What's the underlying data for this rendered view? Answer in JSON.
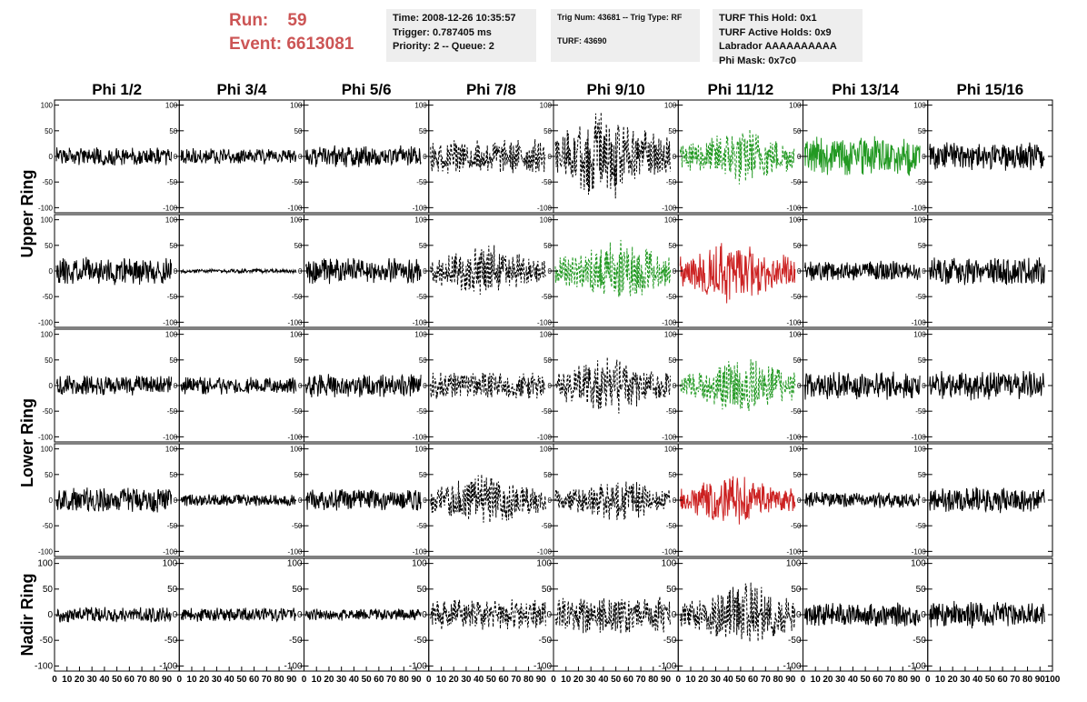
{
  "header": {
    "run_label": "Run:",
    "run_value": "59",
    "event_label": "Event:",
    "event_value": "6613081",
    "run_color": "#cc5555",
    "time": "Time: 2008-12-26 10:35:57",
    "trigger": "Trigger: 0.787405 ms",
    "priority": "Priority: 2 -- Queue: 2",
    "trig_num": "Trig Num: 43681 -- Trig Type: RF",
    "turf": "TURF: 43690",
    "turf_this_hold": "TURF This Hold: 0x1",
    "turf_active_holds": "TURF Active Holds: 0x9",
    "labrador": "Labrador AAAAAAAAAA",
    "phi_mask": "Phi Mask: 0x7c0"
  },
  "chart_data": {
    "type": "line",
    "columns": [
      "Phi 1/2",
      "Phi 3/4",
      "Phi 5/6",
      "Phi 7/8",
      "Phi 9/10",
      "Phi 11/12",
      "Phi 13/14",
      "Phi 15/16"
    ],
    "row_groups": [
      {
        "label": "Upper Ring",
        "rows": [
          0,
          1
        ]
      },
      {
        "label": "Lower Ring",
        "rows": [
          2,
          3
        ]
      },
      {
        "label": "Nadir Ring",
        "rows": [
          4
        ]
      }
    ],
    "xlim": [
      0,
      100
    ],
    "ylim": [
      -110,
      110
    ],
    "x_ticks": [
      "0",
      "10",
      "20",
      "30",
      "40",
      "50",
      "60",
      "70",
      "80",
      "90",
      "100"
    ],
    "y_ticks_upper": [
      "100",
      "50",
      "0",
      "-50",
      "-100"
    ],
    "y_ticks_nadir": [
      "100",
      "50",
      "0",
      "-50",
      "-100"
    ],
    "colors": {
      "normal": "#000000",
      "green": "#229922",
      "red": "#cc2222"
    },
    "panels": [
      [
        {
          "style": "solid",
          "color": "normal",
          "amp": 18,
          "seed": 1
        },
        {
          "style": "solid",
          "color": "normal",
          "amp": 16,
          "seed": 2
        },
        {
          "style": "solid",
          "color": "normal",
          "amp": 22,
          "seed": 3
        },
        {
          "style": "dashed",
          "color": "normal",
          "amp": 35,
          "seed": 4
        },
        {
          "style": "dashed",
          "color": "normal",
          "amp": 95,
          "seed": 5
        },
        {
          "style": "dashed",
          "color": "green",
          "amp": 60,
          "seed": 6
        },
        {
          "style": "solid",
          "color": "green",
          "amp": 40,
          "seed": 7
        },
        {
          "style": "solid",
          "color": "normal",
          "amp": 28,
          "seed": 8
        }
      ],
      [
        {
          "style": "solid",
          "color": "normal",
          "amp": 28,
          "seed": 11
        },
        {
          "style": "solid",
          "color": "normal",
          "amp": 4,
          "seed": 12
        },
        {
          "style": "solid",
          "color": "normal",
          "amp": 26,
          "seed": 13
        },
        {
          "style": "dashed",
          "color": "normal",
          "amp": 55,
          "seed": 14
        },
        {
          "style": "dashed",
          "color": "green",
          "amp": 65,
          "seed": 15
        },
        {
          "style": "solid",
          "color": "red",
          "amp": 70,
          "seed": 16
        },
        {
          "style": "solid",
          "color": "normal",
          "amp": 20,
          "seed": 17
        },
        {
          "style": "solid",
          "color": "normal",
          "amp": 28,
          "seed": 18
        }
      ],
      [
        {
          "style": "solid",
          "color": "normal",
          "amp": 20,
          "seed": 21
        },
        {
          "style": "solid",
          "color": "normal",
          "amp": 18,
          "seed": 22
        },
        {
          "style": "solid",
          "color": "normal",
          "amp": 24,
          "seed": 23
        },
        {
          "style": "dashed",
          "color": "normal",
          "amp": 28,
          "seed": 24
        },
        {
          "style": "dashed",
          "color": "normal",
          "amp": 60,
          "seed": 25
        },
        {
          "style": "dashed",
          "color": "green",
          "amp": 60,
          "seed": 26
        },
        {
          "style": "solid",
          "color": "normal",
          "amp": 28,
          "seed": 27
        },
        {
          "style": "solid",
          "color": "normal",
          "amp": 30,
          "seed": 28
        }
      ],
      [
        {
          "style": "solid",
          "color": "normal",
          "amp": 26,
          "seed": 31
        },
        {
          "style": "solid",
          "color": "normal",
          "amp": 12,
          "seed": 32
        },
        {
          "style": "solid",
          "color": "normal",
          "amp": 22,
          "seed": 33
        },
        {
          "style": "dashed",
          "color": "normal",
          "amp": 55,
          "seed": 34
        },
        {
          "style": "dashed",
          "color": "normal",
          "amp": 45,
          "seed": 35
        },
        {
          "style": "solid",
          "color": "red",
          "amp": 50,
          "seed": 36
        },
        {
          "style": "solid",
          "color": "normal",
          "amp": 16,
          "seed": 37
        },
        {
          "style": "solid",
          "color": "normal",
          "amp": 26,
          "seed": 38
        }
      ],
      [
        {
          "style": "solid",
          "color": "normal",
          "amp": 16,
          "seed": 41
        },
        {
          "style": "solid",
          "color": "normal",
          "amp": 14,
          "seed": 42
        },
        {
          "style": "solid",
          "color": "normal",
          "amp": 12,
          "seed": 43
        },
        {
          "style": "dashed",
          "color": "normal",
          "amp": 30,
          "seed": 44
        },
        {
          "style": "dashed",
          "color": "normal",
          "amp": 40,
          "seed": 45
        },
        {
          "style": "dashed",
          "color": "normal",
          "amp": 65,
          "seed": 46
        },
        {
          "style": "solid",
          "color": "normal",
          "amp": 24,
          "seed": 47
        },
        {
          "style": "solid",
          "color": "normal",
          "amp": 28,
          "seed": 48
        }
      ]
    ]
  }
}
